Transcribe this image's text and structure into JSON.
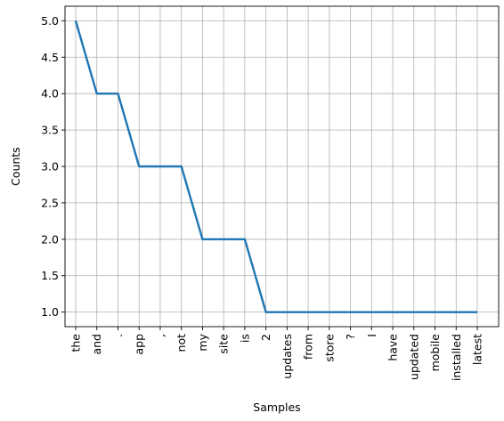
{
  "chart_data": {
    "type": "line",
    "xlabel": "Samples",
    "ylabel": "Counts",
    "categories": [
      "the",
      "and",
      ".",
      "app",
      ",",
      "not",
      "my",
      "site",
      "is",
      "2",
      "updates",
      "from",
      "store",
      "?",
      "I",
      "have",
      "updated",
      "mobile",
      "installed",
      "latest"
    ],
    "values": [
      5,
      4,
      4,
      3,
      3,
      3,
      2,
      2,
      2,
      1,
      1,
      1,
      1,
      1,
      1,
      1,
      1,
      1,
      1,
      1
    ],
    "yticks": [
      "1.0",
      "1.5",
      "2.0",
      "2.5",
      "3.0",
      "3.5",
      "4.0",
      "4.5",
      "5.0"
    ],
    "ylim": [
      0.8,
      5.2
    ],
    "grid": true,
    "line_color": "#1f77b4"
  }
}
